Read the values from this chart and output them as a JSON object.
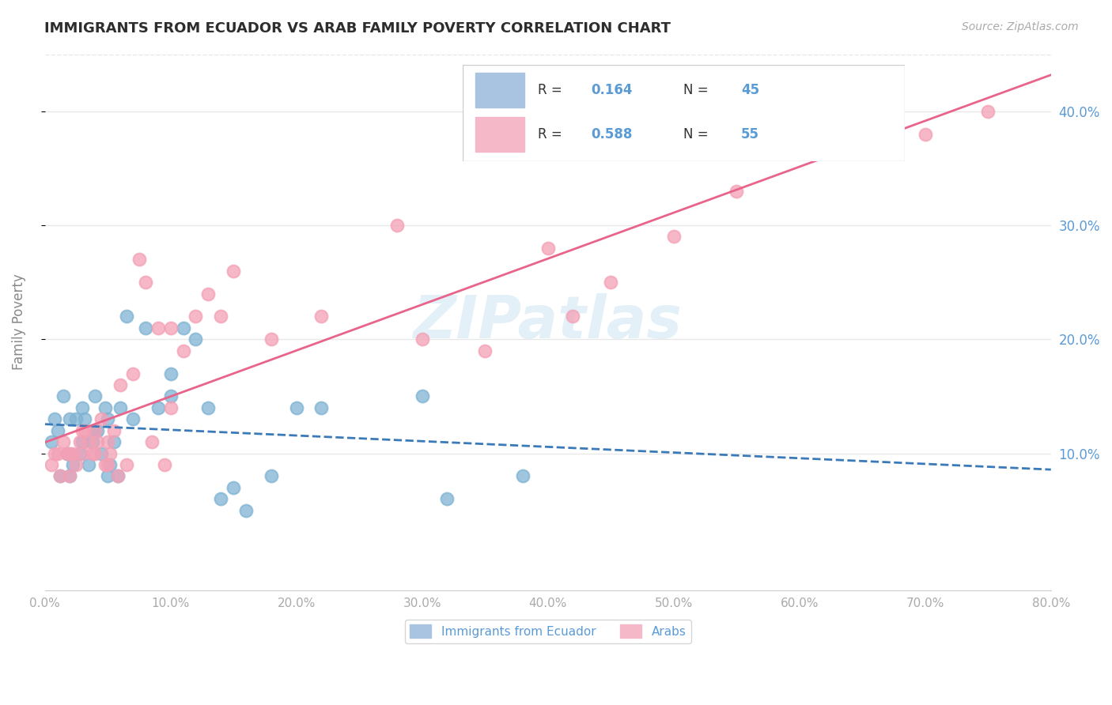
{
  "title": "IMMIGRANTS FROM ECUADOR VS ARAB FAMILY POVERTY CORRELATION CHART",
  "source": "Source: ZipAtlas.com",
  "ylabel": "Family Poverty",
  "watermark": "ZIPatlas",
  "xlim": [
    0.0,
    0.8
  ],
  "ylim": [
    -0.02,
    0.45
  ],
  "yticks": [
    0.1,
    0.2,
    0.3,
    0.4
  ],
  "xticks": [
    0.0,
    0.1,
    0.2,
    0.3,
    0.4,
    0.5,
    0.6,
    0.7,
    0.8
  ],
  "ecuador_x": [
    0.005,
    0.008,
    0.01,
    0.012,
    0.015,
    0.018,
    0.02,
    0.02,
    0.022,
    0.025,
    0.028,
    0.03,
    0.03,
    0.032,
    0.035,
    0.038,
    0.04,
    0.04,
    0.042,
    0.045,
    0.048,
    0.05,
    0.05,
    0.052,
    0.055,
    0.058,
    0.06,
    0.065,
    0.07,
    0.08,
    0.09,
    0.1,
    0.1,
    0.11,
    0.12,
    0.13,
    0.14,
    0.15,
    0.16,
    0.18,
    0.2,
    0.22,
    0.3,
    0.32,
    0.38
  ],
  "ecuador_y": [
    0.11,
    0.13,
    0.12,
    0.08,
    0.15,
    0.1,
    0.13,
    0.08,
    0.09,
    0.13,
    0.1,
    0.11,
    0.14,
    0.13,
    0.09,
    0.11,
    0.12,
    0.15,
    0.12,
    0.1,
    0.14,
    0.13,
    0.08,
    0.09,
    0.11,
    0.08,
    0.14,
    0.22,
    0.13,
    0.21,
    0.14,
    0.15,
    0.17,
    0.21,
    0.2,
    0.14,
    0.06,
    0.07,
    0.05,
    0.08,
    0.14,
    0.14,
    0.15,
    0.06,
    0.08
  ],
  "arab_x": [
    0.005,
    0.008,
    0.01,
    0.012,
    0.015,
    0.018,
    0.02,
    0.02,
    0.022,
    0.025,
    0.028,
    0.03,
    0.03,
    0.032,
    0.035,
    0.038,
    0.04,
    0.04,
    0.042,
    0.045,
    0.048,
    0.05,
    0.05,
    0.052,
    0.055,
    0.058,
    0.06,
    0.065,
    0.07,
    0.075,
    0.08,
    0.085,
    0.09,
    0.095,
    0.1,
    0.1,
    0.11,
    0.12,
    0.13,
    0.14,
    0.15,
    0.18,
    0.22,
    0.28,
    0.3,
    0.35,
    0.4,
    0.42,
    0.45,
    0.5,
    0.55,
    0.58,
    0.65,
    0.7,
    0.75
  ],
  "arab_y": [
    0.09,
    0.1,
    0.1,
    0.08,
    0.11,
    0.1,
    0.08,
    0.1,
    0.1,
    0.09,
    0.11,
    0.1,
    0.12,
    0.12,
    0.11,
    0.1,
    0.1,
    0.12,
    0.11,
    0.13,
    0.09,
    0.11,
    0.09,
    0.1,
    0.12,
    0.08,
    0.16,
    0.09,
    0.17,
    0.27,
    0.25,
    0.11,
    0.21,
    0.09,
    0.14,
    0.21,
    0.19,
    0.22,
    0.24,
    0.22,
    0.26,
    0.2,
    0.22,
    0.3,
    0.2,
    0.19,
    0.28,
    0.22,
    0.25,
    0.29,
    0.33,
    0.37,
    0.38,
    0.38,
    0.4
  ],
  "title_color": "#2d2d2d",
  "ecuador_dot_color": "#7fb3d3",
  "arab_dot_color": "#f4a0b5",
  "ecuador_line_color": "#3a7ab8",
  "arab_line_color": "#e8648a",
  "grid_color": "#e8e8e8",
  "right_axis_color": "#5b9bd5",
  "bottom_legend_color": "#5b9bd5",
  "background_color": "#ffffff",
  "legend_R_color": "#5b9bd5",
  "legend_N_color": "#5b9bd5",
  "legend_eq_patch": "#a8c4e0",
  "legend_arab_patch": "#f4b8c8"
}
